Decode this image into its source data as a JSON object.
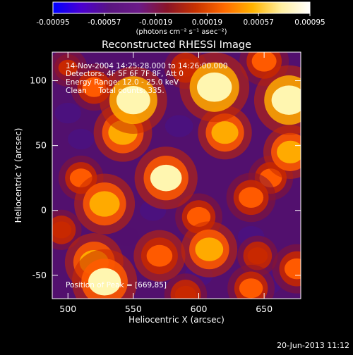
{
  "chart_data": {
    "type": "heatmap",
    "title": "Reconstructed RHESSI Image",
    "xlabel": "Heliocentric X (arcsec)",
    "ylabel": "Heliocentric Y (arcsec)",
    "xlim": [
      488,
      678
    ],
    "ylim": [
      -68,
      122
    ],
    "x_ticks": [
      500,
      550,
      600,
      650
    ],
    "y_ticks": [
      -50,
      0,
      50,
      100
    ],
    "x_tick_labels": [
      "500",
      "550",
      "600",
      "650"
    ],
    "y_tick_labels": [
      "-50",
      "0",
      "50",
      "100"
    ],
    "colorbar": {
      "range": [
        -0.00095,
        0.00095
      ],
      "ticks": [
        -0.00095,
        -0.00057,
        -0.00019,
        0.00019,
        0.00057,
        0.00095
      ],
      "tick_labels": [
        "-0.00095",
        "-0.00057",
        "-0.00019",
        "0.00019",
        "0.00057",
        "0.00095"
      ],
      "units_label": "(photons cm⁻² s⁻¹ asec⁻²)",
      "colors": [
        "#0000ff",
        "#4b00d0",
        "#5a1580",
        "#6b1a88",
        "#8a1428",
        "#c83200",
        "#ff6a00",
        "#ffb400",
        "#fff0a0",
        "#ffffff"
      ]
    },
    "annotations": [
      "14-Nov-2004 14:25:28.000 to 14:26:00.000",
      "Detectors: 4F 5F 6F 7F 8F, Att 0",
      "Energy Range: 12.0 - 25.0 keV",
      "Clean     Total counts: 335.",
      "Position of Peak = [669,85]"
    ],
    "peak_position": [
      669,
      85
    ],
    "sources": [
      {
        "x": 550,
        "y": 85,
        "value": 0.0009
      },
      {
        "x": 542,
        "y": 60,
        "value": 0.0007
      },
      {
        "x": 520,
        "y": 95,
        "value": 0.00045
      },
      {
        "x": 612,
        "y": 95,
        "value": 0.00095
      },
      {
        "x": 620,
        "y": 60,
        "value": 0.0006
      },
      {
        "x": 669,
        "y": 85,
        "value": 0.00095
      },
      {
        "x": 650,
        "y": 115,
        "value": 0.0005
      },
      {
        "x": 670,
        "y": 45,
        "value": 0.0006
      },
      {
        "x": 575,
        "y": 25,
        "value": 0.0008
      },
      {
        "x": 528,
        "y": 5,
        "value": 0.00075
      },
      {
        "x": 510,
        "y": 25,
        "value": 0.0004
      },
      {
        "x": 640,
        "y": 10,
        "value": 0.0005
      },
      {
        "x": 655,
        "y": 25,
        "value": 0.0004
      },
      {
        "x": 600,
        "y": -5,
        "value": 0.00045
      },
      {
        "x": 608,
        "y": -30,
        "value": 0.00065
      },
      {
        "x": 570,
        "y": -35,
        "value": 0.00055
      },
      {
        "x": 520,
        "y": -40,
        "value": 0.0007
      },
      {
        "x": 528,
        "y": -55,
        "value": 0.00085
      },
      {
        "x": 645,
        "y": -35,
        "value": 0.0003
      },
      {
        "x": 640,
        "y": -60,
        "value": 0.00045
      },
      {
        "x": 675,
        "y": -45,
        "value": 0.0005
      },
      {
        "x": 495,
        "y": -15,
        "value": 0.0003
      },
      {
        "x": 590,
        "y": -65,
        "value": 0.00035
      },
      {
        "x": 500,
        "y": 110,
        "value": 0.00025
      },
      {
        "x": 590,
        "y": 110,
        "value": 0.00035
      },
      {
        "x": 565,
        "y": 0,
        "value": -0.0002
      },
      {
        "x": 585,
        "y": 65,
        "value": -0.00025
      },
      {
        "x": 640,
        "y": -20,
        "value": -0.0002
      },
      {
        "x": 510,
        "y": 55,
        "value": -0.0002
      },
      {
        "x": 650,
        "y": -55,
        "value": -0.0005
      },
      {
        "x": 600,
        "y": -50,
        "value": -0.00025
      },
      {
        "x": 545,
        "y": -20,
        "value": -0.00015
      },
      {
        "x": 500,
        "y": 75,
        "value": -0.0002
      }
    ]
  },
  "footer": {
    "timestamp": "20-Jun-2013 11:12"
  }
}
